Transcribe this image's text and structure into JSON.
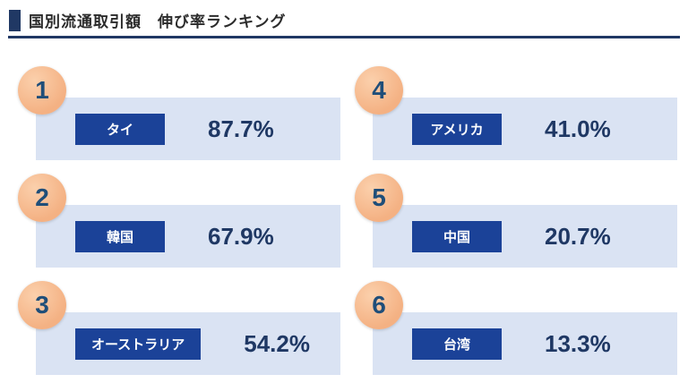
{
  "page": {
    "title": "国別流通取引額　伸び率ランキング"
  },
  "colors": {
    "accent_navy": "#203864",
    "card_background": "#dae3f3",
    "label_blue": "#1b4298",
    "badge_peach": "#f4b183",
    "value_navy": "#1f3864"
  },
  "rankings": [
    {
      "rank": "1",
      "country": "タイ",
      "value": "87.7%"
    },
    {
      "rank": "2",
      "country": "韓国",
      "value": "67.9%"
    },
    {
      "rank": "3",
      "country": "オーストラリア",
      "value": "54.2%"
    },
    {
      "rank": "4",
      "country": "アメリカ",
      "value": "41.0%"
    },
    {
      "rank": "5",
      "country": "中国",
      "value": "20.7%"
    },
    {
      "rank": "6",
      "country": "台湾",
      "value": "13.3%"
    }
  ],
  "chart_data": {
    "type": "table",
    "title": "国別流通取引額　伸び率ランキング",
    "categories": [
      "タイ",
      "韓国",
      "オーストラリア",
      "アメリカ",
      "中国",
      "台湾"
    ],
    "values": [
      87.7,
      67.9,
      54.2,
      41.0,
      20.7,
      13.3
    ],
    "ranks": [
      1,
      2,
      3,
      4,
      5,
      6
    ],
    "unit": "%",
    "layout": "2-column ranked cards, ranks 1-3 left column top-to-bottom, ranks 4-6 right column"
  }
}
